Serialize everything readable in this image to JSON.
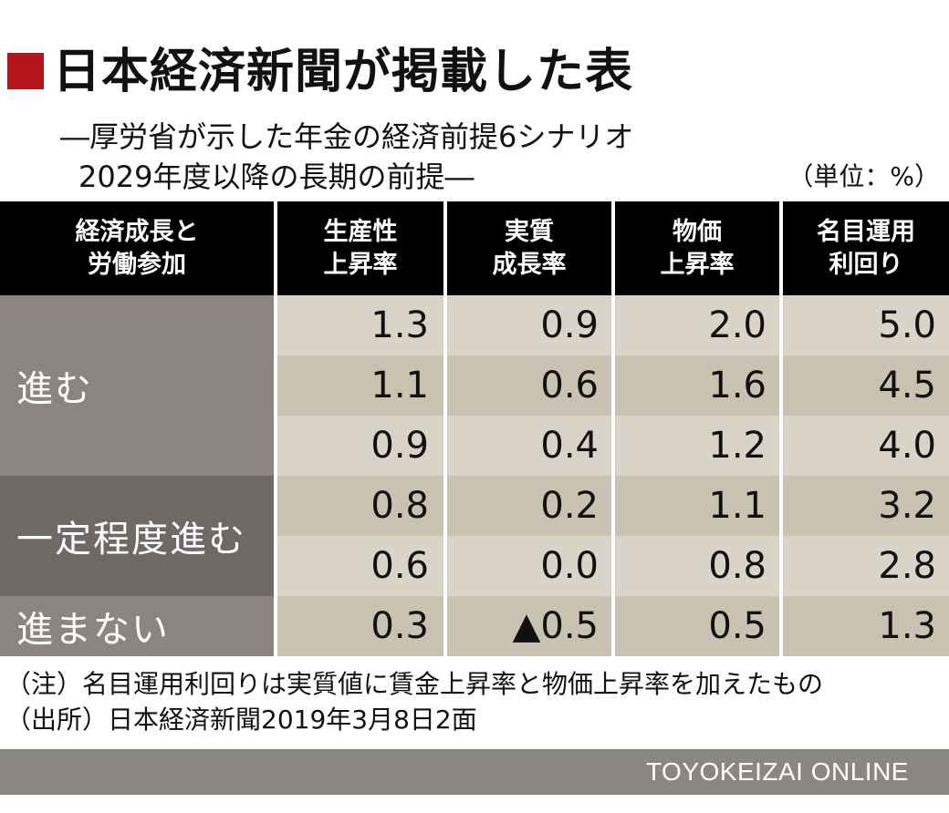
{
  "title": "日本経済新聞が掲載した表",
  "subtitle_line1": "―厚労省が示した年金の経済前提6シナリオ",
  "subtitle_line2": "2029年度以降の長期の前提―",
  "unit": "（単位：%）",
  "headers": [
    [
      "経済成長と",
      "労働参加"
    ],
    [
      "生産性",
      "上昇率"
    ],
    [
      "実質",
      "成長率"
    ],
    [
      "物価",
      "上昇率"
    ],
    [
      "名目運用",
      "利回り"
    ]
  ],
  "groups": [
    "進む",
    "一定程度進む",
    "進まない"
  ],
  "rows": [
    [
      "1.3",
      "0.9",
      "2.0",
      "5.0"
    ],
    [
      "1.1",
      "0.6",
      "1.6",
      "4.5"
    ],
    [
      "0.9",
      "0.4",
      "1.2",
      "4.0"
    ],
    [
      "0.8",
      "0.2",
      "1.1",
      "3.2"
    ],
    [
      "0.6",
      "0.0",
      "0.8",
      "2.8"
    ],
    [
      "0.3",
      "▲0.5",
      "0.5",
      "1.3"
    ]
  ],
  "note1": "（注）名目運用利回りは実質値に賃金上昇率と物価上昇率を加えたもの",
  "note2": "（出所）日本経済新聞2019年3月8日2面",
  "footer": "TOYOKEIZAI  ONLINE",
  "colors": {
    "accent": "#b3151a",
    "header_bg": "#000000",
    "row_shade_a": "#d9d4c7",
    "row_shade_b": "#c9c2b0",
    "group_light": "#8a8580",
    "group_dark": "#6e6966",
    "footer_bg": "#8a8782"
  }
}
